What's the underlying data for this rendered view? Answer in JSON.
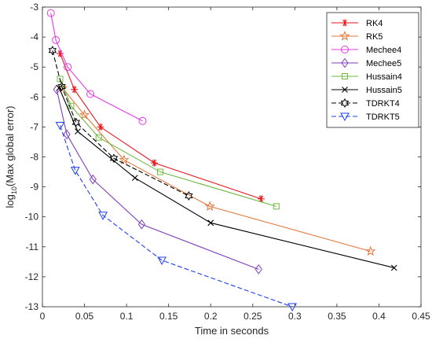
{
  "chart_data": {
    "type": "line",
    "title": "",
    "xlabel": "Time in seconds",
    "ylabel_prefix": "log",
    "ylabel_sub": "10",
    "ylabel_rest": "(Max global error)",
    "xlim": [
      0,
      0.45
    ],
    "ylim": [
      -13,
      -3
    ],
    "xticks": [
      "0",
      "0.05",
      "0.1",
      "0.15",
      "0.2",
      "0.25",
      "0.3",
      "0.35",
      "0.4",
      "0.45"
    ],
    "xtick_values": [
      0,
      0.05,
      0.1,
      0.15,
      0.2,
      0.25,
      0.3,
      0.35,
      0.4,
      0.45
    ],
    "yticks": [
      "-3",
      "-4",
      "-5",
      "-6",
      "-7",
      "-8",
      "-9",
      "-10",
      "-11",
      "-12",
      "-13"
    ],
    "ytick_values": [
      -3,
      -4,
      -5,
      -6,
      -7,
      -8,
      -9,
      -10,
      -11,
      -12,
      -13
    ],
    "grid": false,
    "legend_position": "top-right",
    "series": [
      {
        "name": "RK4",
        "color": "#e8151c",
        "marker": "asterisk",
        "dash": "solid",
        "x": [
          0.021,
          0.038,
          0.069,
          0.133,
          0.26
        ],
        "y": [
          -4.55,
          -5.75,
          -7.0,
          -8.2,
          -9.4
        ]
      },
      {
        "name": "RK5",
        "color": "#e6773a",
        "marker": "star",
        "dash": "solid",
        "x": [
          0.024,
          0.05,
          0.097,
          0.199,
          0.39
        ],
        "y": [
          -5.7,
          -6.6,
          -8.1,
          -9.65,
          -11.15
        ]
      },
      {
        "name": "Mechee4",
        "color": "#e639e6",
        "marker": "circle",
        "dash": "solid",
        "x": [
          0.01,
          0.016,
          0.03,
          0.057,
          0.119
        ],
        "y": [
          -3.2,
          -4.1,
          -5.0,
          -5.9,
          -6.8
        ]
      },
      {
        "name": "Mechee5",
        "color": "#7f3fbf",
        "marker": "diamond",
        "dash": "solid",
        "x": [
          0.017,
          0.029,
          0.06,
          0.118,
          0.257
        ],
        "y": [
          -5.75,
          -7.25,
          -8.75,
          -10.25,
          -11.75
        ]
      },
      {
        "name": "Hussain4",
        "color": "#6fb83f",
        "marker": "square",
        "dash": "solid",
        "x": [
          0.021,
          0.034,
          0.067,
          0.14,
          0.278
        ],
        "y": [
          -5.4,
          -6.3,
          -7.35,
          -8.5,
          -9.65
        ]
      },
      {
        "name": "Hussain5",
        "color": "#000000",
        "marker": "x",
        "dash": "solid",
        "x": [
          0.02,
          0.042,
          0.11,
          0.2,
          0.418
        ],
        "y": [
          -5.7,
          -7.15,
          -8.7,
          -10.2,
          -11.7
        ]
      },
      {
        "name": "TDRKT4",
        "color": "#000000",
        "marker": "hexagram",
        "dash": "dashed",
        "x": [
          0.012,
          0.023,
          0.04,
          0.085,
          0.174
        ],
        "y": [
          -4.45,
          -5.65,
          -6.85,
          -8.05,
          -9.3
        ]
      },
      {
        "name": "TDRKT5",
        "color": "#1f3ff0",
        "marker": "triangle-down",
        "dash": "dashed",
        "x": [
          0.021,
          0.039,
          0.072,
          0.142,
          0.297
        ],
        "y": [
          -6.95,
          -8.45,
          -9.95,
          -11.45,
          -13.0
        ]
      }
    ]
  }
}
